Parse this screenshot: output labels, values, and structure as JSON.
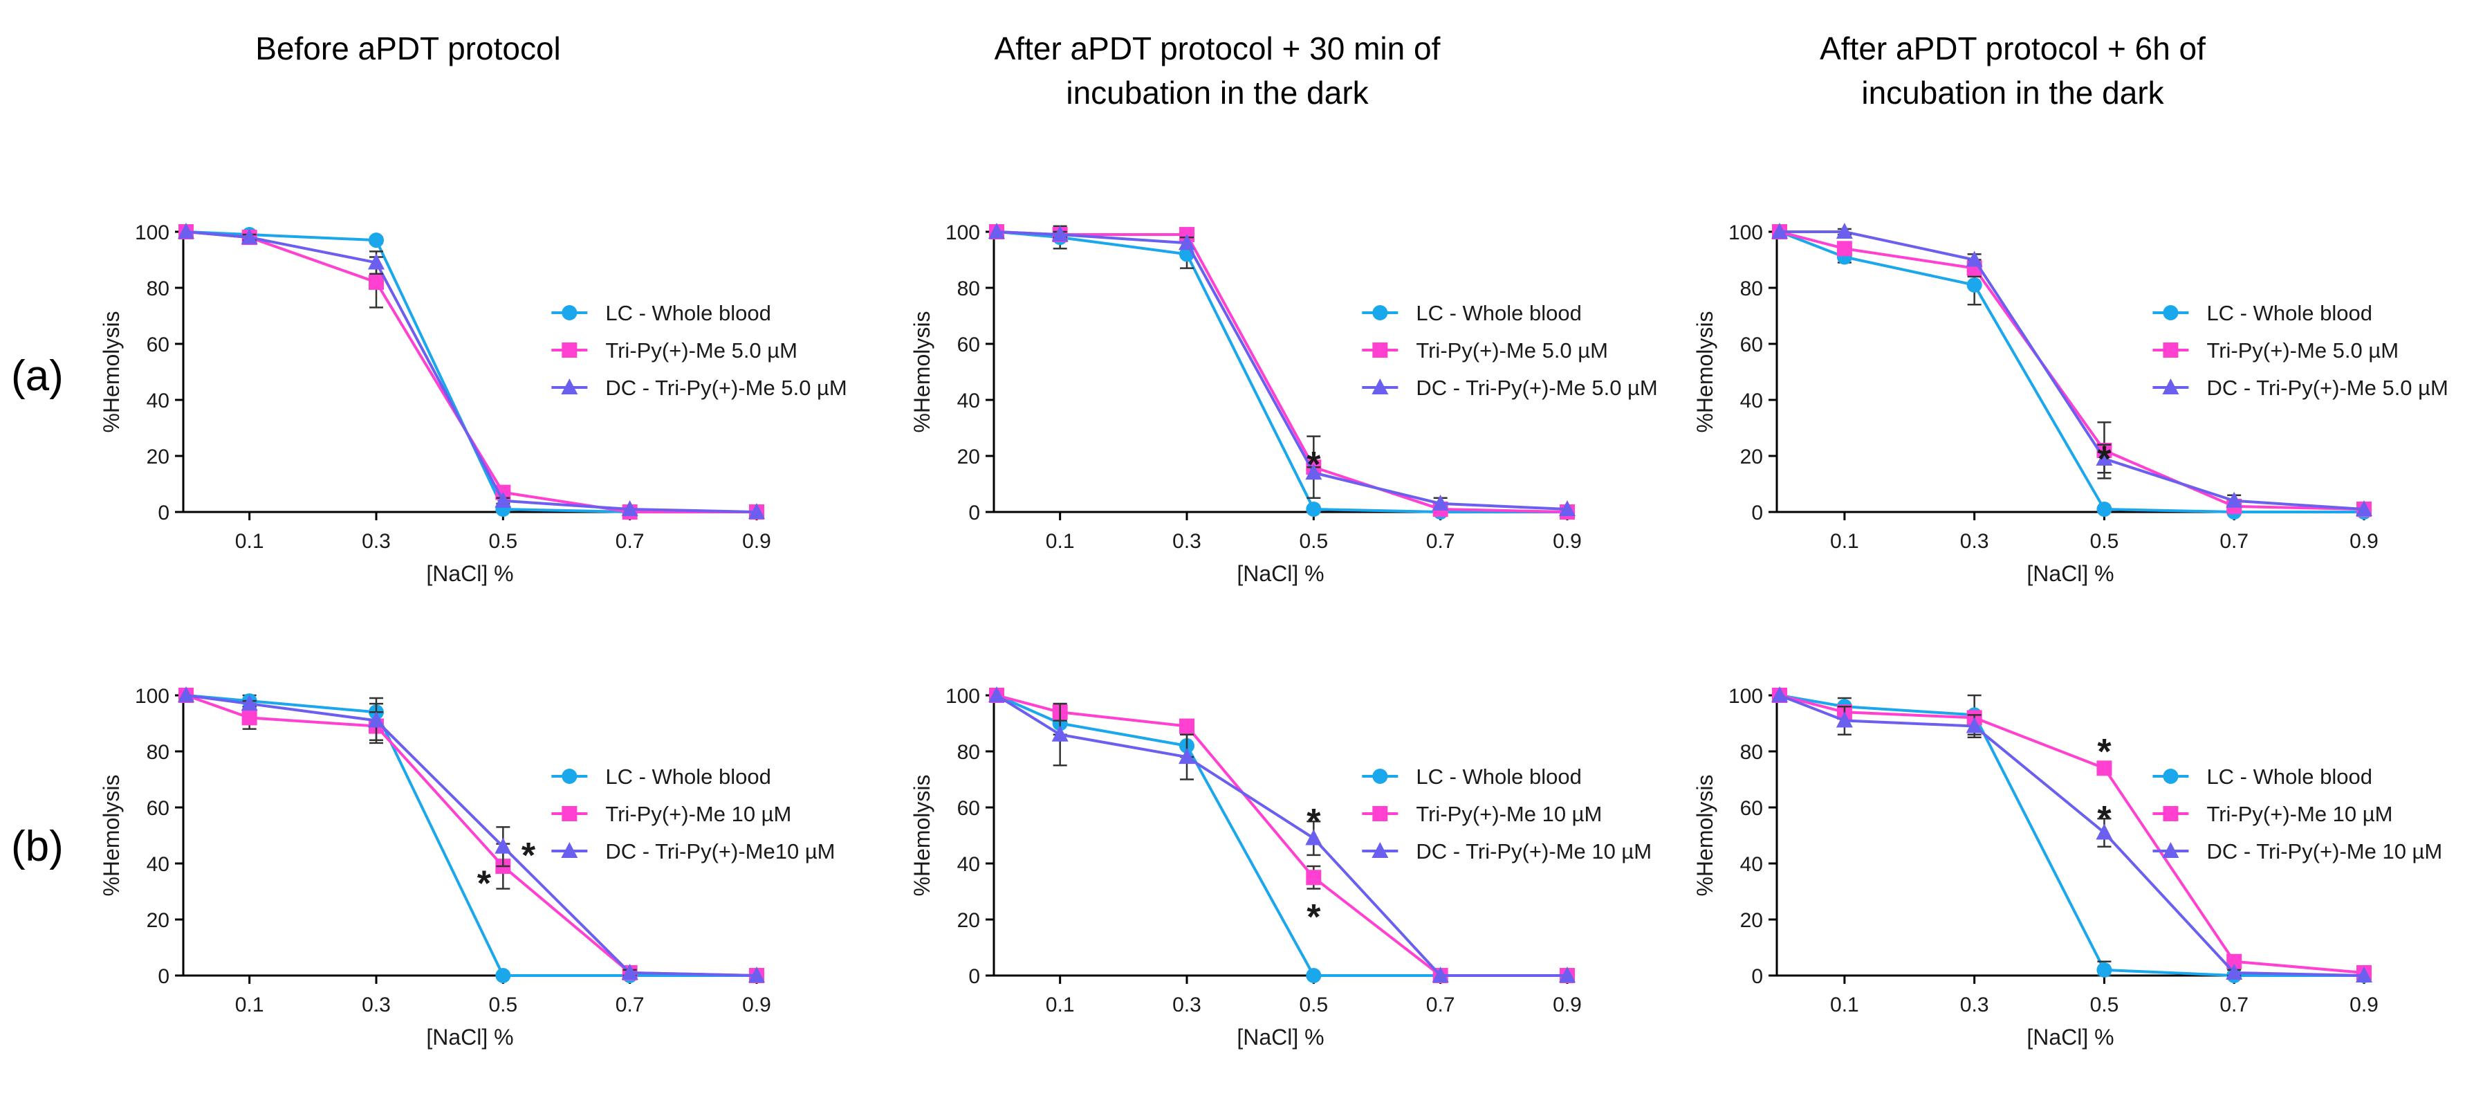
{
  "colors": {
    "LC": "#1aa7ec",
    "Tri": "#ff40d0",
    "DC": "#6b5ff0"
  },
  "column_titles": [
    {
      "line1": "Before aPDT protocol",
      "line2": ""
    },
    {
      "line1": "After aPDT protocol + 30 min of",
      "line2": "incubation in the dark"
    },
    {
      "line1": "After aPDT protocol + 6h of",
      "line2": "incubation in the dark"
    }
  ],
  "row_labels": [
    "(a)",
    "(b)"
  ],
  "chart_data": [
    {
      "type": "line",
      "row": "(a)",
      "column": "Before aPDT protocol",
      "xlabel": "[NaCl] %",
      "ylabel": "%Hemolysis",
      "x": [
        0,
        0.1,
        0.3,
        0.5,
        0.7,
        0.9
      ],
      "x_ticks": [
        "0.1",
        "0.3",
        "0.5",
        "0.7",
        "0.9"
      ],
      "ylim": [
        0,
        100
      ],
      "y_ticks": [
        "0",
        "20",
        "40",
        "60",
        "80",
        "100"
      ],
      "legend_position": "right",
      "series": [
        {
          "name": "LC - Whole blood",
          "marker": "circle",
          "values": [
            100,
            99,
            97,
            1,
            0,
            0
          ],
          "errors": [
            0,
            1,
            1,
            0,
            0,
            0
          ]
        },
        {
          "name": "Tri-Py(+)-Me 5.0 µM",
          "marker": "square",
          "values": [
            100,
            98,
            82,
            7,
            0,
            0
          ],
          "errors": [
            0,
            1,
            9,
            1,
            0,
            0
          ]
        },
        {
          "name": "DC - Tri-Py(+)-Me 5.0 µM",
          "marker": "triangle",
          "values": [
            100,
            98,
            89,
            4,
            1,
            0
          ],
          "errors": [
            0,
            1,
            4,
            1,
            0,
            0
          ]
        }
      ],
      "annotations": []
    },
    {
      "type": "line",
      "row": "(a)",
      "column": "After aPDT protocol + 30 min of incubation in the dark",
      "xlabel": "[NaCl] %",
      "ylabel": "%Hemolysis",
      "x": [
        0,
        0.1,
        0.3,
        0.5,
        0.7,
        0.9
      ],
      "x_ticks": [
        "0.1",
        "0.3",
        "0.5",
        "0.7",
        "0.9"
      ],
      "ylim": [
        0,
        100
      ],
      "y_ticks": [
        "0",
        "20",
        "40",
        "60",
        "80",
        "100"
      ],
      "legend_position": "right",
      "series": [
        {
          "name": "LC - Whole blood",
          "marker": "circle",
          "values": [
            100,
            98,
            92,
            1,
            0,
            0
          ],
          "errors": [
            0,
            4,
            5,
            0,
            0,
            0
          ]
        },
        {
          "name": "Tri-Py(+)-Me 5.0 µM",
          "marker": "square",
          "values": [
            100,
            99,
            99,
            16,
            1,
            0
          ],
          "errors": [
            0,
            1,
            1,
            11,
            1,
            0
          ]
        },
        {
          "name": "DC - Tri-Py(+)-Me 5.0 µM",
          "marker": "triangle",
          "values": [
            100,
            99,
            96,
            14,
            3,
            1
          ],
          "errors": [
            0,
            1,
            2,
            2,
            2,
            0
          ]
        }
      ],
      "annotations": [
        {
          "text": "*",
          "x": 0.5,
          "y": 18
        }
      ]
    },
    {
      "type": "line",
      "row": "(a)",
      "column": "After aPDT protocol + 6h of incubation in the dark",
      "xlabel": "[NaCl] %",
      "ylabel": "%Hemolysis",
      "x": [
        0,
        0.1,
        0.3,
        0.5,
        0.7,
        0.9
      ],
      "x_ticks": [
        "0.1",
        "0.3",
        "0.5",
        "0.7",
        "0.9"
      ],
      "ylim": [
        0,
        100
      ],
      "y_ticks": [
        "0",
        "20",
        "40",
        "60",
        "80",
        "100"
      ],
      "legend_position": "right",
      "series": [
        {
          "name": "LC - Whole blood",
          "marker": "circle",
          "values": [
            100,
            91,
            81,
            1,
            0,
            0
          ],
          "errors": [
            0,
            2,
            7,
            0,
            0,
            0
          ]
        },
        {
          "name": "Tri-Py(+)-Me 5.0 µM",
          "marker": "square",
          "values": [
            100,
            94,
            87,
            22,
            2,
            1
          ],
          "errors": [
            0,
            2,
            3,
            10,
            1,
            0
          ]
        },
        {
          "name": "DC - Tri-Py(+)-Me 5.0 µM",
          "marker": "triangle",
          "values": [
            100,
            100,
            90,
            19,
            4,
            1
          ],
          "errors": [
            0,
            1,
            2,
            5,
            2,
            0
          ]
        }
      ],
      "annotations": [
        {
          "text": "*",
          "x": 0.5,
          "y": 20
        }
      ]
    },
    {
      "type": "line",
      "row": "(b)",
      "column": "Before aPDT protocol",
      "xlabel": "[NaCl] %",
      "ylabel": "%Hemolysis",
      "x": [
        0,
        0.1,
        0.3,
        0.5,
        0.7,
        0.9
      ],
      "x_ticks": [
        "0.1",
        "0.3",
        "0.5",
        "0.7",
        "0.9"
      ],
      "ylim": [
        0,
        100
      ],
      "y_ticks": [
        "0",
        "20",
        "40",
        "60",
        "80",
        "100"
      ],
      "legend_position": "right",
      "series": [
        {
          "name": "LC - Whole blood",
          "marker": "circle",
          "values": [
            100,
            98,
            94,
            0,
            0,
            0
          ],
          "errors": [
            0,
            2,
            3,
            0,
            0,
            0
          ]
        },
        {
          "name": "Tri-Py(+)-Me 10 µM",
          "marker": "square",
          "values": [
            100,
            92,
            89,
            39,
            1,
            0
          ],
          "errors": [
            0,
            4,
            5,
            8,
            1,
            0
          ]
        },
        {
          "name": "DC - Tri-Py(+)-Me10 µM",
          "marker": "triangle",
          "values": [
            100,
            97,
            91,
            46,
            1,
            0
          ],
          "errors": [
            0,
            1,
            8,
            7,
            1,
            0
          ]
        }
      ],
      "annotations": [
        {
          "text": "*",
          "x": 0.47,
          "y": 34
        },
        {
          "text": "*",
          "x": 0.54,
          "y": 44
        }
      ]
    },
    {
      "type": "line",
      "row": "(b)",
      "column": "After aPDT protocol + 30 min of incubation in the dark",
      "xlabel": "[NaCl] %",
      "ylabel": "%Hemolysis",
      "x": [
        0,
        0.1,
        0.3,
        0.5,
        0.7,
        0.9
      ],
      "x_ticks": [
        "0.1",
        "0.3",
        "0.5",
        "0.7",
        "0.9"
      ],
      "ylim": [
        0,
        100
      ],
      "y_ticks": [
        "0",
        "20",
        "40",
        "60",
        "80",
        "100"
      ],
      "legend_position": "right",
      "series": [
        {
          "name": "LC - Whole blood",
          "marker": "circle",
          "values": [
            100,
            90,
            82,
            0,
            0,
            0
          ],
          "errors": [
            0,
            4,
            4,
            0,
            0,
            0
          ]
        },
        {
          "name": "Tri-Py(+)-Me 10 µM",
          "marker": "square",
          "values": [
            100,
            94,
            89,
            35,
            0,
            0
          ],
          "errors": [
            0,
            3,
            1,
            4,
            0,
            0
          ]
        },
        {
          "name": "DC - Tri-Py(+)-Me 10 µM",
          "marker": "triangle",
          "values": [
            100,
            86,
            78,
            49,
            0,
            0
          ],
          "errors": [
            0,
            11,
            8,
            6,
            0,
            0
          ]
        }
      ],
      "annotations": [
        {
          "text": "*",
          "x": 0.5,
          "y": 56
        },
        {
          "text": "*",
          "x": 0.5,
          "y": 22
        }
      ]
    },
    {
      "type": "line",
      "row": "(b)",
      "column": "After aPDT protocol + 6h of incubation in the dark",
      "xlabel": "[NaCl] %",
      "ylabel": "%Hemolysis",
      "x": [
        0,
        0.1,
        0.3,
        0.5,
        0.7,
        0.9
      ],
      "x_ticks": [
        "0.1",
        "0.3",
        "0.5",
        "0.7",
        "0.9"
      ],
      "ylim": [
        0,
        100
      ],
      "y_ticks": [
        "0",
        "20",
        "40",
        "60",
        "80",
        "100"
      ],
      "legend_position": "right",
      "series": [
        {
          "name": "LC - Whole blood",
          "marker": "circle",
          "values": [
            100,
            96,
            93,
            2,
            0,
            0
          ],
          "errors": [
            0,
            3,
            7,
            3,
            0,
            0
          ]
        },
        {
          "name": "Tri-Py(+)-Me 10 µM",
          "marker": "square",
          "values": [
            100,
            94,
            92,
            74,
            5,
            1
          ],
          "errors": [
            0,
            2,
            2,
            2,
            2,
            0
          ]
        },
        {
          "name": "DC - Tri-Py(+)-Me 10 µM",
          "marker": "triangle",
          "values": [
            100,
            91,
            89,
            51,
            1,
            0
          ],
          "errors": [
            0,
            5,
            4,
            5,
            1,
            0
          ]
        }
      ],
      "annotations": [
        {
          "text": "*",
          "x": 0.5,
          "y": 81
        },
        {
          "text": "*",
          "x": 0.5,
          "y": 57
        }
      ]
    }
  ]
}
